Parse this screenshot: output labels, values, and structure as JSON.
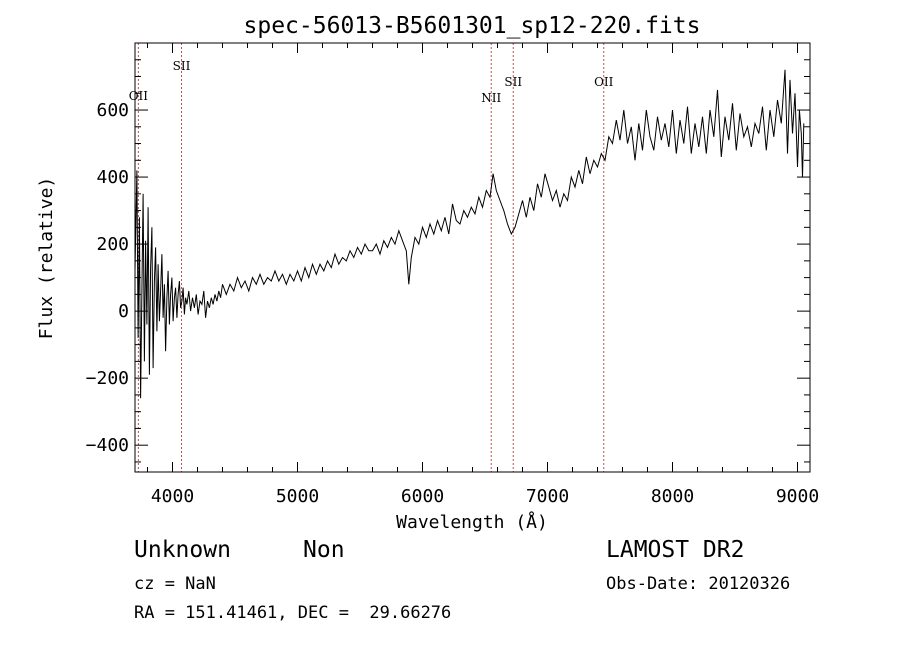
{
  "chart_data": {
    "type": "line",
    "title": "spec-56013-B5601301_sp12-220.fits",
    "xlabel": "Wavelength (Å)",
    "ylabel": "Flux (relative)",
    "xlim": [
      3700,
      9100
    ],
    "ylim": [
      -480,
      800
    ],
    "x_ticks": [
      4000,
      5000,
      6000,
      7000,
      8000,
      9000
    ],
    "y_ticks": [
      -400,
      -200,
      0,
      200,
      400,
      600
    ],
    "x_minor_step": 200,
    "y_minor_step": 50,
    "series": [
      {
        "name": "flux",
        "points": [
          [
            3700,
            120
          ],
          [
            3715,
            420
          ],
          [
            3725,
            -80
          ],
          [
            3735,
            280
          ],
          [
            3745,
            -260
          ],
          [
            3755,
            60
          ],
          [
            3765,
            350
          ],
          [
            3775,
            -150
          ],
          [
            3785,
            210
          ],
          [
            3795,
            -40
          ],
          [
            3805,
            310
          ],
          [
            3815,
            -190
          ],
          [
            3825,
            130
          ],
          [
            3835,
            250
          ],
          [
            3845,
            -170
          ],
          [
            3855,
            90
          ],
          [
            3865,
            190
          ],
          [
            3875,
            -60
          ],
          [
            3885,
            140
          ],
          [
            3895,
            -30
          ],
          [
            3905,
            60
          ],
          [
            3915,
            170
          ],
          [
            3925,
            -20
          ],
          [
            3935,
            80
          ],
          [
            3945,
            -120
          ],
          [
            3955,
            40
          ],
          [
            3965,
            120
          ],
          [
            3975,
            -40
          ],
          [
            3985,
            50
          ],
          [
            3995,
            100
          ],
          [
            4005,
            -30
          ],
          [
            4015,
            40
          ],
          [
            4025,
            70
          ],
          [
            4035,
            -20
          ],
          [
            4045,
            50
          ],
          [
            4055,
            90
          ],
          [
            4065,
            10
          ],
          [
            4075,
            30
          ],
          [
            4085,
            70
          ],
          [
            4095,
            -10
          ],
          [
            4105,
            40
          ],
          [
            4115,
            20
          ],
          [
            4130,
            60
          ],
          [
            4145,
            0
          ],
          [
            4160,
            40
          ],
          [
            4175,
            10
          ],
          [
            4190,
            50
          ],
          [
            4205,
            -10
          ],
          [
            4220,
            30
          ],
          [
            4235,
            20
          ],
          [
            4250,
            60
          ],
          [
            4265,
            -20
          ],
          [
            4280,
            30
          ],
          [
            4295,
            10
          ],
          [
            4310,
            40
          ],
          [
            4325,
            20
          ],
          [
            4340,
            50
          ],
          [
            4355,
            30
          ],
          [
            4370,
            60
          ],
          [
            4385,
            40
          ],
          [
            4400,
            80
          ],
          [
            4430,
            50
          ],
          [
            4460,
            80
          ],
          [
            4490,
            60
          ],
          [
            4520,
            100
          ],
          [
            4550,
            70
          ],
          [
            4580,
            90
          ],
          [
            4610,
            60
          ],
          [
            4640,
            100
          ],
          [
            4670,
            80
          ],
          [
            4700,
            110
          ],
          [
            4730,
            80
          ],
          [
            4760,
            100
          ],
          [
            4790,
            90
          ],
          [
            4820,
            120
          ],
          [
            4850,
            90
          ],
          [
            4880,
            110
          ],
          [
            4910,
            80
          ],
          [
            4940,
            110
          ],
          [
            4970,
            90
          ],
          [
            5000,
            120
          ],
          [
            5030,
            90
          ],
          [
            5060,
            130
          ],
          [
            5090,
            100
          ],
          [
            5120,
            140
          ],
          [
            5150,
            110
          ],
          [
            5180,
            140
          ],
          [
            5210,
            120
          ],
          [
            5240,
            150
          ],
          [
            5270,
            130
          ],
          [
            5300,
            170
          ],
          [
            5330,
            140
          ],
          [
            5360,
            160
          ],
          [
            5390,
            150
          ],
          [
            5420,
            180
          ],
          [
            5450,
            160
          ],
          [
            5480,
            190
          ],
          [
            5510,
            170
          ],
          [
            5540,
            200
          ],
          [
            5570,
            180
          ],
          [
            5600,
            180
          ],
          [
            5630,
            200
          ],
          [
            5660,
            170
          ],
          [
            5690,
            210
          ],
          [
            5720,
            190
          ],
          [
            5750,
            220
          ],
          [
            5780,
            200
          ],
          [
            5810,
            240
          ],
          [
            5840,
            210
          ],
          [
            5870,
            180
          ],
          [
            5890,
            80
          ],
          [
            5910,
            160
          ],
          [
            5940,
            220
          ],
          [
            5970,
            200
          ],
          [
            6000,
            250
          ],
          [
            6030,
            220
          ],
          [
            6060,
            260
          ],
          [
            6090,
            230
          ],
          [
            6120,
            270
          ],
          [
            6150,
            240
          ],
          [
            6180,
            280
          ],
          [
            6210,
            230
          ],
          [
            6240,
            320
          ],
          [
            6270,
            270
          ],
          [
            6300,
            260
          ],
          [
            6330,
            300
          ],
          [
            6360,
            280
          ],
          [
            6390,
            310
          ],
          [
            6420,
            290
          ],
          [
            6450,
            340
          ],
          [
            6480,
            310
          ],
          [
            6510,
            360
          ],
          [
            6540,
            340
          ],
          [
            6565,
            410
          ],
          [
            6590,
            360
          ],
          [
            6620,
            330
          ],
          [
            6650,
            300
          ],
          [
            6680,
            260
          ],
          [
            6710,
            230
          ],
          [
            6740,
            250
          ],
          [
            6770,
            290
          ],
          [
            6800,
            330
          ],
          [
            6830,
            280
          ],
          [
            6860,
            340
          ],
          [
            6890,
            300
          ],
          [
            6920,
            380
          ],
          [
            6950,
            340
          ],
          [
            6980,
            410
          ],
          [
            7010,
            370
          ],
          [
            7040,
            330
          ],
          [
            7070,
            360
          ],
          [
            7100,
            310
          ],
          [
            7130,
            350
          ],
          [
            7160,
            330
          ],
          [
            7190,
            400
          ],
          [
            7220,
            370
          ],
          [
            7250,
            420
          ],
          [
            7280,
            380
          ],
          [
            7310,
            460
          ],
          [
            7340,
            410
          ],
          [
            7370,
            450
          ],
          [
            7400,
            430
          ],
          [
            7430,
            470
          ],
          [
            7460,
            450
          ],
          [
            7490,
            520
          ],
          [
            7520,
            500
          ],
          [
            7550,
            570
          ],
          [
            7580,
            510
          ],
          [
            7610,
            600
          ],
          [
            7640,
            500
          ],
          [
            7670,
            550
          ],
          [
            7700,
            450
          ],
          [
            7730,
            560
          ],
          [
            7760,
            480
          ],
          [
            7790,
            600
          ],
          [
            7820,
            520
          ],
          [
            7850,
            480
          ],
          [
            7880,
            580
          ],
          [
            7910,
            510
          ],
          [
            7940,
            560
          ],
          [
            7970,
            490
          ],
          [
            8000,
            600
          ],
          [
            8030,
            470
          ],
          [
            8060,
            570
          ],
          [
            8090,
            500
          ],
          [
            8120,
            610
          ],
          [
            8150,
            470
          ],
          [
            8180,
            560
          ],
          [
            8210,
            490
          ],
          [
            8240,
            580
          ],
          [
            8270,
            470
          ],
          [
            8300,
            600
          ],
          [
            8330,
            520
          ],
          [
            8360,
            660
          ],
          [
            8390,
            460
          ],
          [
            8420,
            580
          ],
          [
            8450,
            510
          ],
          [
            8480,
            620
          ],
          [
            8510,
            480
          ],
          [
            8540,
            590
          ],
          [
            8570,
            520
          ],
          [
            8600,
            550
          ],
          [
            8630,
            490
          ],
          [
            8660,
            560
          ],
          [
            8690,
            530
          ],
          [
            8720,
            610
          ],
          [
            8750,
            480
          ],
          [
            8780,
            600
          ],
          [
            8810,
            520
          ],
          [
            8840,
            630
          ],
          [
            8870,
            560
          ],
          [
            8900,
            720
          ],
          [
            8920,
            470
          ],
          [
            8940,
            690
          ],
          [
            8960,
            530
          ],
          [
            8980,
            650
          ],
          [
            9000,
            430
          ],
          [
            9015,
            600
          ],
          [
            9030,
            530
          ],
          [
            9040,
            400
          ],
          [
            9050,
            560
          ]
        ]
      }
    ],
    "lines": [
      {
        "label": "OII",
        "x": 3727
      },
      {
        "label": "SII",
        "x": 4072
      },
      {
        "label": "NII",
        "x": 6550
      },
      {
        "label": "SII",
        "x": 6726
      },
      {
        "label": "OII",
        "x": 7450
      }
    ],
    "line_color": "#c0504d"
  },
  "info": {
    "class_label": "Unknown",
    "subclass_label": "Non",
    "cz": "cz = NaN",
    "radec": "RA = 151.41461, DEC =  29.66276",
    "survey": "LAMOST DR2",
    "obs_date": "Obs-Date: 20120326"
  }
}
